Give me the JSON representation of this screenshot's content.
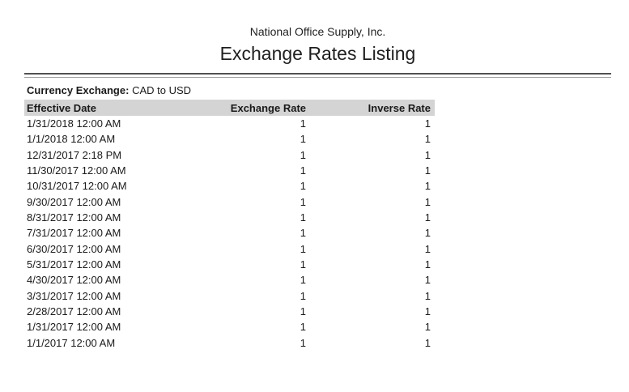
{
  "report": {
    "company": "National Office Supply, Inc.",
    "title": "Exchange Rates Listing",
    "filter": {
      "label": "Currency Exchange:",
      "value": "CAD to USD"
    },
    "table": {
      "columns": [
        "Effective Date",
        "Exchange Rate",
        "Inverse Rate"
      ],
      "rows": [
        {
          "date": "1/31/2018 12:00 AM",
          "rate": "1",
          "inverse": "1"
        },
        {
          "date": "1/1/2018 12:00 AM",
          "rate": "1",
          "inverse": "1"
        },
        {
          "date": "12/31/2017 2:18 PM",
          "rate": "1",
          "inverse": "1"
        },
        {
          "date": "11/30/2017 12:00 AM",
          "rate": "1",
          "inverse": "1"
        },
        {
          "date": "10/31/2017 12:00 AM",
          "rate": "1",
          "inverse": "1"
        },
        {
          "date": "9/30/2017 12:00 AM",
          "rate": "1",
          "inverse": "1"
        },
        {
          "date": "8/31/2017 12:00 AM",
          "rate": "1",
          "inverse": "1"
        },
        {
          "date": "7/31/2017 12:00 AM",
          "rate": "1",
          "inverse": "1"
        },
        {
          "date": "6/30/2017 12:00 AM",
          "rate": "1",
          "inverse": "1"
        },
        {
          "date": "5/31/2017 12:00 AM",
          "rate": "1",
          "inverse": "1"
        },
        {
          "date": "4/30/2017 12:00 AM",
          "rate": "1",
          "inverse": "1"
        },
        {
          "date": "3/31/2017 12:00 AM",
          "rate": "1",
          "inverse": "1"
        },
        {
          "date": "2/28/2017 12:00 AM",
          "rate": "1",
          "inverse": "1"
        },
        {
          "date": "1/31/2017 12:00 AM",
          "rate": "1",
          "inverse": "1"
        },
        {
          "date": "1/1/2017 12:00 AM",
          "rate": "1",
          "inverse": "1"
        }
      ]
    },
    "colors": {
      "header_bg": "#d4d4d4",
      "text": "#1a1a1a",
      "rule_dark": "#515151",
      "rule_light": "#9e9e9e"
    }
  }
}
